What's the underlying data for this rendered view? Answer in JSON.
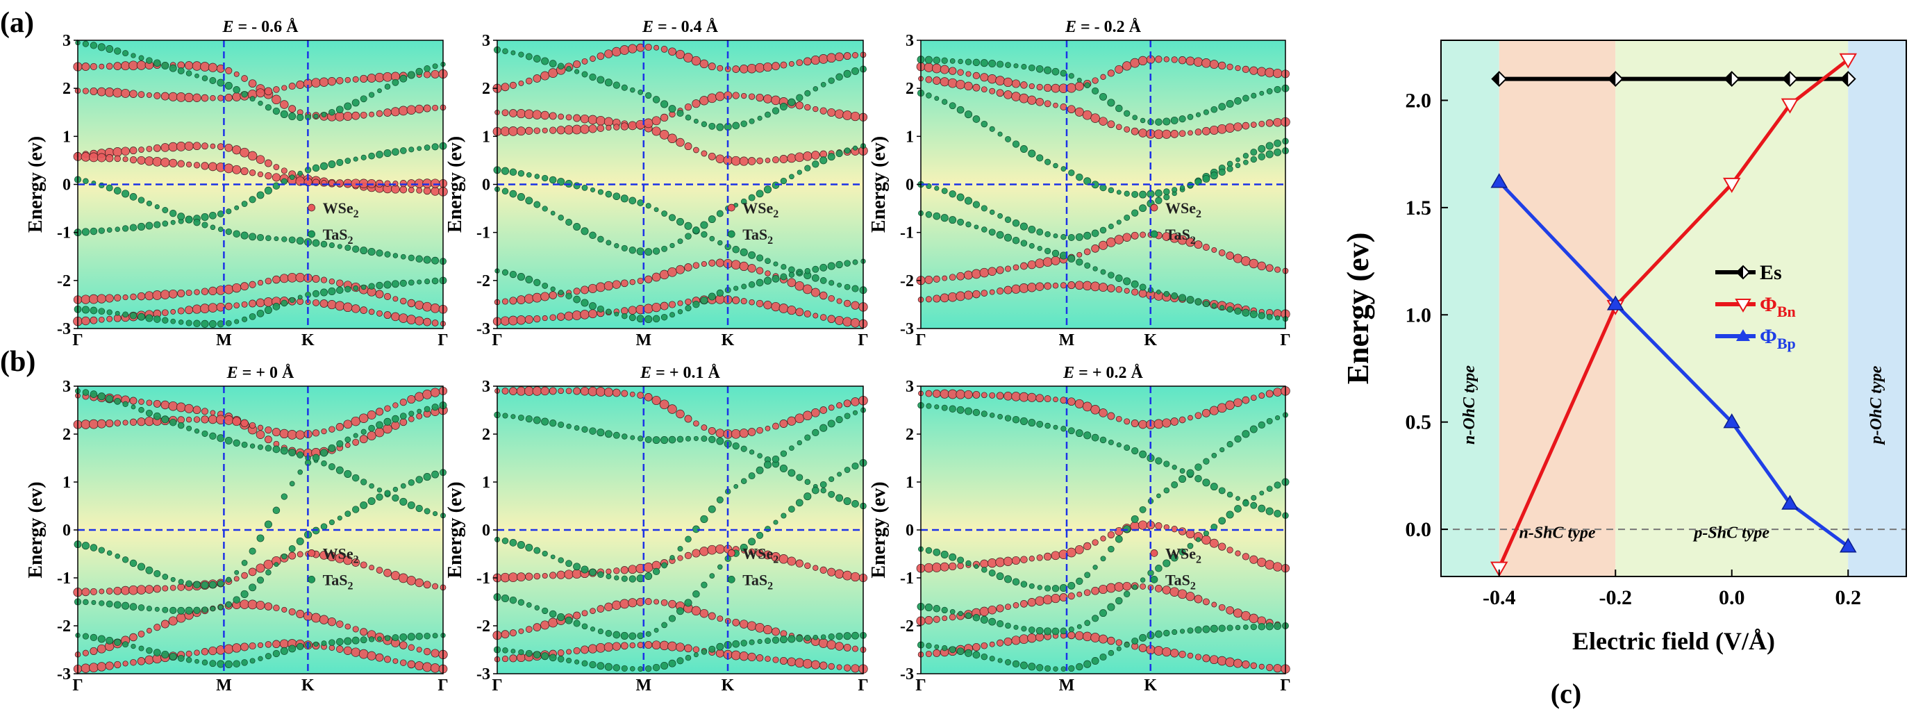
{
  "figure": {
    "panel_labels": {
      "a": "(a)",
      "b": "(b)",
      "c": "(c)"
    }
  },
  "colors": {
    "wse2": "#e8595c",
    "tas2": "#1e9a5a",
    "es_line": "#000000",
    "phi_bn_line": "#e8161b",
    "phi_bp_line": "#1f3fe6",
    "dashed_guides": "#1c32e6",
    "region_n_ohc": "#c8f3e6",
    "region_n_shc": "#f9dcc8",
    "region_p_shc": "#eaf6d4",
    "region_p_ohc": "#cfe6f7",
    "band_bg_top": "#5ee6c6",
    "band_bg_mid": "#f5f3b8"
  },
  "chart_data": [
    {
      "type": "scatter",
      "panel": "a",
      "field": "- 0.6",
      "title_prefix": "E",
      "title_value": "= - 0.6 Å",
      "ylabel": "Energy (ev)",
      "ylim": [
        -3,
        3
      ],
      "yticks": [
        "3",
        "2",
        "1",
        "0",
        "-1",
        "-2",
        "-3"
      ],
      "xticks": [
        "Γ",
        "M",
        "K",
        "Γ"
      ],
      "legend": [
        "WSe2",
        "TaS2"
      ],
      "legend_display": [
        {
          "base": "WSe",
          "sub": "2"
        },
        {
          "base": "TaS",
          "sub": "2"
        }
      ],
      "bands": [
        {
          "species": "WSe2",
          "y": [
            0.62,
            0.78,
            0.1,
            -0.15
          ]
        },
        {
          "species": "WSe2",
          "y": [
            0.58,
            0.35,
            0.05,
            0.02
          ]
        },
        {
          "species": "WSe2",
          "y": [
            2.45,
            2.4,
            1.45,
            1.6
          ]
        },
        {
          "species": "WSe2",
          "y": [
            1.95,
            1.8,
            2.1,
            2.3
          ]
        },
        {
          "species": "WSe2",
          "y": [
            -2.4,
            -2.2,
            -1.95,
            -2.6
          ]
        },
        {
          "species": "WSe2",
          "y": [
            -2.85,
            -2.55,
            -2.45,
            -2.9
          ]
        },
        {
          "species": "TaS2",
          "y": [
            -1.0,
            -0.6,
            0.3,
            0.8
          ]
        },
        {
          "species": "TaS2",
          "y": [
            0.1,
            -0.95,
            -1.2,
            -1.6
          ]
        },
        {
          "species": "TaS2",
          "y": [
            2.95,
            2.1,
            1.4,
            2.5
          ]
        },
        {
          "species": "TaS2",
          "y": [
            -2.6,
            -2.9,
            -2.3,
            -2.0
          ]
        }
      ]
    },
    {
      "type": "scatter",
      "panel": "a",
      "field": "- 0.4",
      "title_prefix": "E",
      "title_value": "= - 0.4 Å",
      "ylabel": "Energy (ev)",
      "ylim": [
        -3,
        3
      ],
      "yticks": [
        "3",
        "2",
        "1",
        "0",
        "-1",
        "-2",
        "-3"
      ],
      "xticks": [
        "Γ",
        "M",
        "K",
        "Γ"
      ],
      "legend": [
        "WSe2",
        "TaS2"
      ],
      "legend_display": [
        {
          "base": "WSe",
          "sub": "2"
        },
        {
          "base": "TaS",
          "sub": "2"
        }
      ],
      "bands": [
        {
          "species": "WSe2",
          "y": [
            1.5,
            1.2,
            0.5,
            0.7
          ]
        },
        {
          "species": "WSe2",
          "y": [
            1.1,
            1.25,
            1.85,
            1.4
          ]
        },
        {
          "species": "WSe2",
          "y": [
            2.0,
            2.85,
            2.4,
            2.7
          ]
        },
        {
          "species": "WSe2",
          "y": [
            -2.45,
            -2.0,
            -1.65,
            -2.55
          ]
        },
        {
          "species": "WSe2",
          "y": [
            -2.85,
            -2.6,
            -2.4,
            -2.9
          ]
        },
        {
          "species": "TaS2",
          "y": [
            -0.1,
            -1.4,
            -0.5,
            0.8
          ]
        },
        {
          "species": "TaS2",
          "y": [
            0.3,
            -0.4,
            -1.3,
            -2.2
          ]
        },
        {
          "species": "TaS2",
          "y": [
            2.8,
            1.9,
            1.2,
            2.4
          ]
        },
        {
          "species": "TaS2",
          "y": [
            -1.8,
            -2.8,
            -2.2,
            -1.6
          ]
        }
      ]
    },
    {
      "type": "scatter",
      "panel": "a",
      "field": "- 0.2",
      "title_prefix": "E",
      "title_value": "= - 0.2 Å",
      "ylabel": "Energy (ev)",
      "ylim": [
        -3,
        3
      ],
      "yticks": [
        "3",
        "2",
        "1",
        "0",
        "-1",
        "-2",
        "-3"
      ],
      "xticks": [
        "Γ",
        "M",
        "K",
        "Γ"
      ],
      "legend": [
        "WSe2",
        "TaS2"
      ],
      "legend_display": [
        {
          "base": "WSe",
          "sub": "2"
        },
        {
          "base": "TaS",
          "sub": "2"
        }
      ],
      "bands": [
        {
          "species": "WSe2",
          "y": [
            2.2,
            1.6,
            1.05,
            1.3
          ]
        },
        {
          "species": "WSe2",
          "y": [
            2.45,
            2.0,
            2.6,
            2.3
          ]
        },
        {
          "species": "WSe2",
          "y": [
            -2.0,
            -1.55,
            -1.05,
            -1.8
          ]
        },
        {
          "species": "WSe2",
          "y": [
            -2.4,
            -2.1,
            -2.3,
            -2.7
          ]
        },
        {
          "species": "TaS2",
          "y": [
            0.0,
            -1.1,
            -0.4,
            0.9
          ]
        },
        {
          "species": "TaS2",
          "y": [
            -0.6,
            -1.5,
            -2.2,
            -2.8
          ]
        },
        {
          "species": "TaS2",
          "y": [
            2.6,
            2.3,
            1.3,
            2.0
          ]
        },
        {
          "species": "TaS2",
          "y": [
            1.9,
            0.3,
            -0.2,
            0.7
          ]
        }
      ]
    },
    {
      "type": "scatter",
      "panel": "b",
      "field": "+ 0",
      "title_prefix": "E",
      "title_value": "= + 0 Å",
      "ylabel": "Energy (ev)",
      "ylim": [
        -3,
        3
      ],
      "yticks": [
        "3",
        "2",
        "1",
        "0",
        "-1",
        "-2",
        "-3"
      ],
      "xticks": [
        "Γ",
        "M",
        "K",
        "Γ"
      ],
      "legend": [
        "WSe2",
        "TaS2"
      ],
      "legend_display": [
        {
          "base": "WSe",
          "sub": "2"
        },
        {
          "base": "TaS",
          "sub": "2"
        }
      ],
      "bands": [
        {
          "species": "WSe2",
          "y": [
            2.8,
            2.4,
            1.6,
            2.5
          ]
        },
        {
          "species": "WSe2",
          "y": [
            2.2,
            2.3,
            2.0,
            2.9
          ]
        },
        {
          "species": "WSe2",
          "y": [
            -1.3,
            -1.1,
            -0.5,
            -1.2
          ]
        },
        {
          "species": "WSe2",
          "y": [
            -2.6,
            -1.6,
            -1.8,
            -2.6
          ]
        },
        {
          "species": "WSe2",
          "y": [
            -2.9,
            -2.5,
            -2.4,
            -2.9
          ]
        },
        {
          "species": "TaS2",
          "y": [
            2.9,
            1.9,
            1.5,
            0.3
          ]
        },
        {
          "species": "TaS2",
          "y": [
            -0.3,
            -1.1,
            1.4,
            2.6
          ]
        },
        {
          "species": "TaS2",
          "y": [
            -1.5,
            -1.6,
            -0.1,
            1.2
          ]
        },
        {
          "species": "TaS2",
          "y": [
            -2.2,
            -2.8,
            -2.4,
            -2.2
          ]
        }
      ]
    },
    {
      "type": "scatter",
      "panel": "b",
      "field": "+ 0.1",
      "title_prefix": "E",
      "title_value": "= + 0.1 Å",
      "ylabel": "Energy (ev)",
      "ylim": [
        -3,
        3
      ],
      "yticks": [
        "3",
        "2",
        "1",
        "0",
        "-1",
        "-2",
        "-3"
      ],
      "xticks": [
        "Γ",
        "M",
        "K",
        "Γ"
      ],
      "legend": [
        "WSe2",
        "TaS2"
      ],
      "legend_display": [
        {
          "base": "WSe",
          "sub": "2"
        },
        {
          "base": "TaS",
          "sub": "2"
        }
      ],
      "bands": [
        {
          "species": "WSe2",
          "y": [
            2.9,
            2.8,
            2.0,
            2.7
          ]
        },
        {
          "species": "WSe2",
          "y": [
            -1.0,
            -0.8,
            -0.4,
            -1.0
          ]
        },
        {
          "species": "WSe2",
          "y": [
            -2.2,
            -1.5,
            -1.9,
            -2.5
          ]
        },
        {
          "species": "WSe2",
          "y": [
            -2.7,
            -2.4,
            -2.6,
            -2.9
          ]
        },
        {
          "species": "TaS2",
          "y": [
            2.4,
            1.9,
            1.8,
            0.5
          ]
        },
        {
          "species": "TaS2",
          "y": [
            -0.2,
            -1.0,
            0.8,
            2.5
          ]
        },
        {
          "species": "TaS2",
          "y": [
            -1.4,
            -2.2,
            -0.6,
            1.4
          ]
        },
        {
          "species": "TaS2",
          "y": [
            -2.5,
            -2.9,
            -2.4,
            -2.2
          ]
        }
      ]
    },
    {
      "type": "scatter",
      "panel": "b",
      "field": "+ 0.2",
      "title_prefix": "E",
      "title_value": "= + 0.2 Å",
      "ylabel": "Energy (ev)",
      "ylim": [
        -3,
        3
      ],
      "yticks": [
        "3",
        "2",
        "1",
        "0",
        "-1",
        "-2",
        "-3"
      ],
      "xticks": [
        "Γ",
        "M",
        "K",
        "Γ"
      ],
      "legend": [
        "WSe2",
        "TaS2"
      ],
      "legend_display": [
        {
          "base": "WSe",
          "sub": "2"
        },
        {
          "base": "TaS",
          "sub": "2"
        }
      ],
      "bands": [
        {
          "species": "WSe2",
          "y": [
            2.85,
            2.7,
            2.2,
            2.9
          ]
        },
        {
          "species": "WSe2",
          "y": [
            -0.8,
            -0.5,
            0.1,
            -0.8
          ]
        },
        {
          "species": "WSe2",
          "y": [
            -1.9,
            -1.4,
            -1.2,
            -2.0
          ]
        },
        {
          "species": "WSe2",
          "y": [
            -2.6,
            -2.2,
            -2.5,
            -2.9
          ]
        },
        {
          "species": "TaS2",
          "y": [
            2.6,
            2.1,
            1.5,
            0.3
          ]
        },
        {
          "species": "TaS2",
          "y": [
            -0.4,
            -1.2,
            0.6,
            2.4
          ]
        },
        {
          "species": "TaS2",
          "y": [
            -1.6,
            -2.1,
            -0.9,
            1.0
          ]
        },
        {
          "species": "TaS2",
          "y": [
            -2.4,
            -2.9,
            -2.2,
            -2.0
          ]
        }
      ]
    },
    {
      "type": "line",
      "panel": "c",
      "xlabel": "Electric field (V/Å)",
      "ylabel": "Energy (ev)",
      "xlim": [
        -0.5,
        0.3
      ],
      "ylim": [
        -0.22,
        2.28
      ],
      "xticks": [
        "-0.4",
        "-0.2",
        "0.0",
        "0.2"
      ],
      "yticks": [
        "0.0",
        "0.5",
        "1.0",
        "1.5",
        "2.0"
      ],
      "x": [
        -0.4,
        -0.2,
        0.0,
        0.1,
        0.2
      ],
      "series": [
        {
          "name": "Es",
          "legend_base": "Es",
          "legend_sub": "",
          "values": [
            2.1,
            2.1,
            2.1,
            2.1,
            2.1
          ],
          "marker": "half-diamond"
        },
        {
          "name": "ΦBn",
          "legend_base": "Φ",
          "legend_sub": "Bn",
          "values": [
            -0.18,
            1.04,
            1.61,
            1.98,
            2.19
          ],
          "marker": "triangle-down-open"
        },
        {
          "name": "ΦBp",
          "legend_base": "Φ",
          "legend_sub": "Bp",
          "values": [
            1.62,
            1.05,
            0.5,
            0.12,
            -0.08
          ],
          "marker": "triangle-up"
        }
      ],
      "regions": [
        {
          "label": "n-OhC type",
          "from": -0.5,
          "to": -0.4
        },
        {
          "label": "n-ShC type",
          "from": -0.4,
          "to": -0.2
        },
        {
          "label": "p-ShC type",
          "from": -0.2,
          "to": 0.2
        },
        {
          "label": "p-OhC type",
          "from": 0.2,
          "to": 0.3
        }
      ],
      "zero_line": 0.0
    }
  ]
}
